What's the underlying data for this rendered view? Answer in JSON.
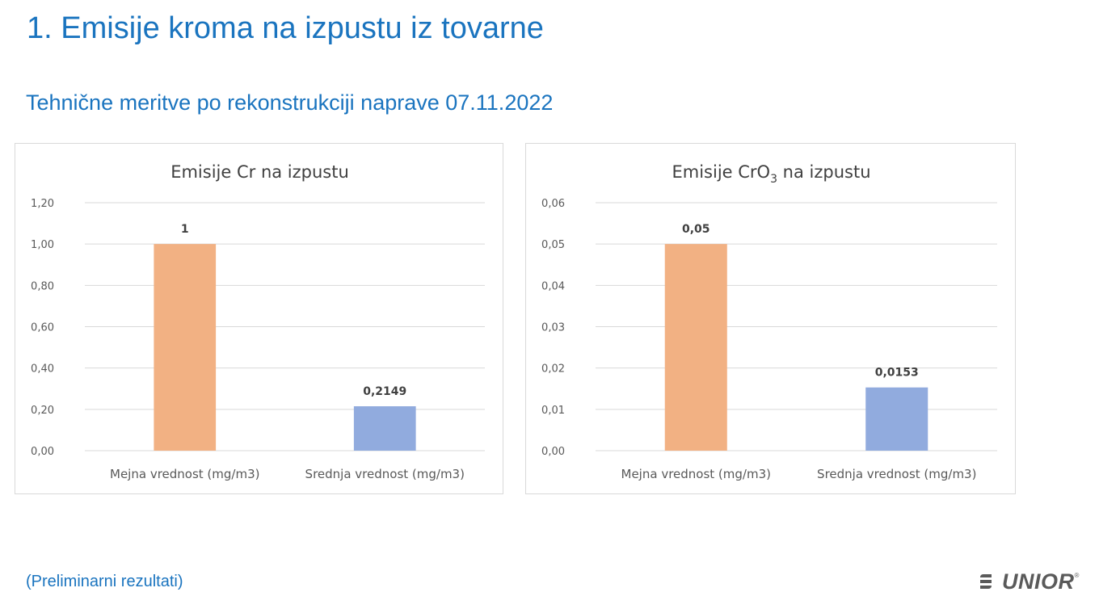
{
  "slide": {
    "title": "1. Emisije kroma na izpustu iz tovarne",
    "subtitle": "Tehnične meritve po rekonstrukciji naprave 07.11.2022",
    "footnote": "(Preliminarni rezultati)",
    "brand": "UNIOR",
    "brand_mark": "®"
  },
  "colors": {
    "heading": "#1a74bf",
    "bar_limit": "#f2b183",
    "bar_average": "#91abde",
    "grid": "#d9d9d9",
    "axis_text": "#595959",
    "chart_title": "#404040"
  },
  "chart_data": [
    {
      "type": "bar",
      "title": "Emisije Cr na izpustu",
      "categories": [
        "Mejna vrednost (mg/m3)",
        "Srednja vrednost (mg/m3)"
      ],
      "values": [
        1,
        0.2149
      ],
      "data_labels": [
        "1",
        "0,2149"
      ],
      "ylim": [
        0,
        1.2
      ],
      "yticks": [
        0,
        0.2,
        0.4,
        0.6,
        0.8,
        1.0,
        1.2
      ],
      "ytick_labels": [
        "0,00",
        "0,20",
        "0,40",
        "0,60",
        "0,80",
        "1,00",
        "1,20"
      ],
      "grid": true
    },
    {
      "type": "bar",
      "title": "Emisije CrO3 na izpustu",
      "title_parts": {
        "pre": "Emisije CrO",
        "sub": "3",
        "post": " na izpustu"
      },
      "categories": [
        "Mejna vrednost (mg/m3)",
        "Srednja vrednost (mg/m3)"
      ],
      "values": [
        0.05,
        0.0153
      ],
      "data_labels": [
        "0,05",
        "0,0153"
      ],
      "ylim": [
        0,
        0.06
      ],
      "yticks": [
        0,
        0.01,
        0.02,
        0.03,
        0.04,
        0.05,
        0.06
      ],
      "ytick_labels": [
        "0,00",
        "0,01",
        "0,02",
        "0,03",
        "0,04",
        "0,05",
        "0,06"
      ],
      "grid": true
    }
  ]
}
